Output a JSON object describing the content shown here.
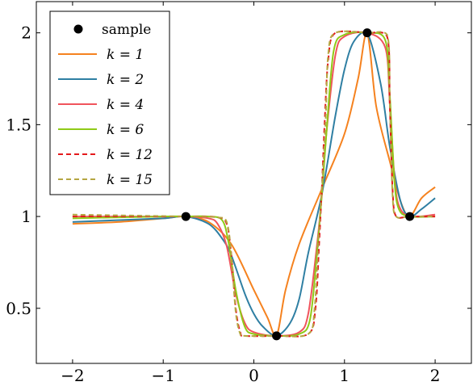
{
  "chart_data": {
    "type": "line",
    "xlim": [
      -2.4,
      2.4
    ],
    "ylim": [
      0.2,
      2.17
    ],
    "x_ticks": [
      -2,
      -1,
      0,
      1,
      2
    ],
    "x_tick_labels": [
      "−2",
      "−1",
      "0",
      "1",
      "2"
    ],
    "y_ticks": [
      0.5,
      1,
      1.5,
      2
    ],
    "y_tick_labels": [
      "0.5",
      "1",
      "1.5",
      "2"
    ],
    "grid": false,
    "legend_position": "top-left",
    "samples": {
      "name": "sample",
      "color": "#000000",
      "x": [
        -0.75,
        0.25,
        1.25,
        1.72
      ],
      "y": [
        1.0,
        0.35,
        2.0,
        1.0
      ]
    },
    "series": [
      {
        "name": "k = 1",
        "color": "#f5821f",
        "dash": "solid",
        "x": [
          -2.0,
          -1.5,
          -1.0,
          -0.75,
          -0.5,
          -0.25,
          0.0,
          0.15,
          0.25,
          0.35,
          0.5,
          0.75,
          1.0,
          1.15,
          1.25,
          1.35,
          1.5,
          1.62,
          1.72,
          1.85,
          2.0
        ],
        "y": [
          0.96,
          0.97,
          0.99,
          1.0,
          0.97,
          0.85,
          0.6,
          0.45,
          0.35,
          0.6,
          0.85,
          1.15,
          1.45,
          1.75,
          2.0,
          1.6,
          1.3,
          1.08,
          1.0,
          1.1,
          1.16
        ]
      },
      {
        "name": "k = 2",
        "color": "#2f7fa3",
        "dash": "solid",
        "x": [
          -2.0,
          -1.5,
          -1.0,
          -0.75,
          -0.5,
          -0.35,
          -0.25,
          -0.1,
          0.0,
          0.1,
          0.25,
          0.4,
          0.5,
          0.6,
          0.75,
          0.9,
          1.0,
          1.1,
          1.25,
          1.4,
          1.5,
          1.62,
          1.72,
          1.85,
          2.0
        ],
        "y": [
          0.97,
          0.98,
          0.99,
          1.0,
          0.96,
          0.88,
          0.79,
          0.58,
          0.47,
          0.4,
          0.35,
          0.42,
          0.55,
          0.8,
          1.12,
          1.55,
          1.8,
          1.95,
          2.0,
          1.72,
          1.38,
          1.08,
          1.0,
          1.04,
          1.1
        ]
      },
      {
        "name": "k = 4",
        "color": "#f0545c",
        "dash": "solid",
        "x": [
          -2.0,
          -1.0,
          -0.75,
          -0.5,
          -0.4,
          -0.3,
          -0.2,
          -0.1,
          0.0,
          0.25,
          0.5,
          0.6,
          0.7,
          0.75,
          0.8,
          0.9,
          1.0,
          1.25,
          1.45,
          1.5,
          1.55,
          1.6,
          1.72,
          2.0
        ],
        "y": [
          1.0,
          1.0,
          1.0,
          0.99,
          0.96,
          0.84,
          0.58,
          0.42,
          0.37,
          0.35,
          0.37,
          0.47,
          0.86,
          1.12,
          1.45,
          1.88,
          1.98,
          2.0,
          1.92,
          1.62,
          1.22,
          1.06,
          1.0,
          1.01
        ]
      },
      {
        "name": "k = 6",
        "color": "#8fca17",
        "dash": "solid",
        "x": [
          -2.0,
          -1.0,
          -0.75,
          -0.5,
          -0.35,
          -0.28,
          -0.2,
          -0.1,
          0.0,
          0.25,
          0.5,
          0.62,
          0.7,
          0.75,
          0.8,
          0.88,
          1.0,
          1.25,
          1.45,
          1.5,
          1.55,
          1.6,
          1.72,
          2.0
        ],
        "y": [
          0.99,
          1.0,
          1.0,
          1.0,
          0.98,
          0.86,
          0.6,
          0.4,
          0.36,
          0.35,
          0.36,
          0.44,
          0.82,
          1.12,
          1.45,
          1.9,
          1.99,
          2.0,
          1.96,
          1.66,
          1.2,
          1.04,
          1.0,
          1.0
        ]
      },
      {
        "name": "k = 12",
        "color": "#e41a1c",
        "dash": "dashed",
        "x": [
          -2.0,
          -0.75,
          -0.4,
          -0.3,
          -0.25,
          -0.2,
          -0.15,
          -0.1,
          0.25,
          0.6,
          0.68,
          0.72,
          0.75,
          0.78,
          0.82,
          0.9,
          1.25,
          1.47,
          1.5,
          1.53,
          1.57,
          1.72,
          2.0
        ],
        "y": [
          1.0,
          1.0,
          0.995,
          0.96,
          0.8,
          0.5,
          0.37,
          0.35,
          0.35,
          0.36,
          0.5,
          0.85,
          1.15,
          1.5,
          1.85,
          2.0,
          2.0,
          1.98,
          1.6,
          1.15,
          1.0,
          1.0,
          1.0
        ]
      },
      {
        "name": "k = 15",
        "color": "#b5a642",
        "dash": "dashed",
        "x": [
          -2.0,
          -0.75,
          -0.4,
          -0.3,
          -0.25,
          -0.2,
          -0.15,
          -0.1,
          0.25,
          0.6,
          0.67,
          0.71,
          0.75,
          0.79,
          0.82,
          0.9,
          1.25,
          1.47,
          1.5,
          1.53,
          1.57,
          1.72,
          2.0
        ],
        "y": [
          1.01,
          1.0,
          0.995,
          0.97,
          0.8,
          0.48,
          0.36,
          0.35,
          0.35,
          0.36,
          0.5,
          0.85,
          1.15,
          1.5,
          1.88,
          2.0,
          2.0,
          1.99,
          1.62,
          1.12,
          1.0,
          1.0,
          1.0
        ]
      }
    ]
  }
}
